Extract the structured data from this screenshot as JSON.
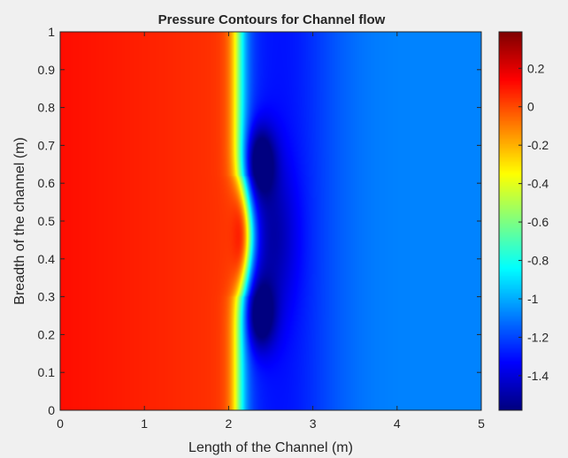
{
  "chart_data": {
    "type": "heatmap",
    "title": "Pressure Contours for Channel flow",
    "xlabel": "Length of the Channel (m)",
    "ylabel": "Breadth of the channel (m)",
    "xlim": [
      0,
      5
    ],
    "ylim": [
      0,
      1
    ],
    "xticks": [
      "0",
      "1",
      "2",
      "3",
      "4",
      "5"
    ],
    "yticks": [
      "0",
      "0.1",
      "0.2",
      "0.3",
      "0.4",
      "0.5",
      "0.6",
      "0.7",
      "0.8",
      "0.9",
      "1"
    ],
    "colorbar": {
      "colormap": "jet",
      "clim": [
        -1.58,
        0.39
      ],
      "ticks": [
        "0.2",
        "0",
        "-0.2",
        "-0.4",
        "-0.6",
        "-0.8",
        "-1",
        "-1.2",
        "-1.4"
      ]
    },
    "field": {
      "description_values": {
        "upstream_inlet_pressure": 0.12,
        "upstream_near_obstacle_pressure": 0.04,
        "obstacle_center_peak_pressure": 0.39,
        "obstacle_center_x": 2.25,
        "obstacle_span_y": [
          0.3,
          0.62
        ],
        "wake_min_pressure": -1.55,
        "downstream_far_pressure": -1.08
      }
    },
    "grid": false,
    "legend": "none"
  },
  "colors": {
    "background": "#f0f0f0",
    "axes_edge": "#262626"
  }
}
